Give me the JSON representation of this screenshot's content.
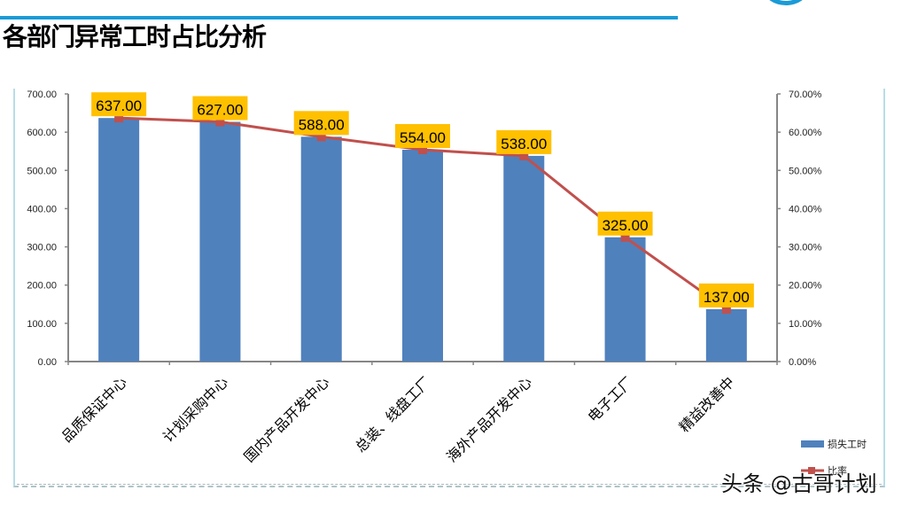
{
  "page": {
    "title": "各部门异常工时占比分析",
    "watermark": "头条 @古哥计划",
    "accent_color": "#1a9bd7"
  },
  "chart_data": {
    "type": "bar",
    "title": "各部门异常工时占比分析",
    "categories": [
      "品质保证中心",
      "计划采购中心",
      "国内产品开发中心",
      "总装、线盘工厂",
      "海外产品开发中心",
      "电子工厂",
      "精益改善中"
    ],
    "series": [
      {
        "name": "损失工时",
        "type": "bar",
        "axis": "left",
        "color": "#4f81bd",
        "values": [
          637,
          627,
          588,
          554,
          538,
          325,
          137
        ],
        "labels": [
          "637.00",
          "627.00",
          "588.00",
          "554.00",
          "538.00",
          "325.00",
          "137.00"
        ]
      },
      {
        "name": "比率",
        "type": "line",
        "axis": "right",
        "color": "#c0504d",
        "values": [
          0.637,
          0.627,
          0.588,
          0.554,
          0.538,
          0.325,
          0.137
        ]
      }
    ],
    "left_axis": {
      "min": 0,
      "max": 700,
      "step": 100,
      "ticks": [
        "0.00",
        "100.00",
        "200.00",
        "300.00",
        "400.00",
        "500.00",
        "600.00",
        "700.00"
      ]
    },
    "right_axis": {
      "min": 0,
      "max": 0.7,
      "step": 0.1,
      "ticks": [
        "0.00%",
        "10.00%",
        "20.00%",
        "30.00%",
        "40.00%",
        "50.00%",
        "60.00%",
        "70.00%"
      ]
    },
    "data_label_bg": "#ffc000",
    "legend": {
      "position": "bottom-right",
      "entries": [
        "损失工时",
        "比率"
      ]
    },
    "grid": false,
    "xlabel": "",
    "ylabel": ""
  }
}
